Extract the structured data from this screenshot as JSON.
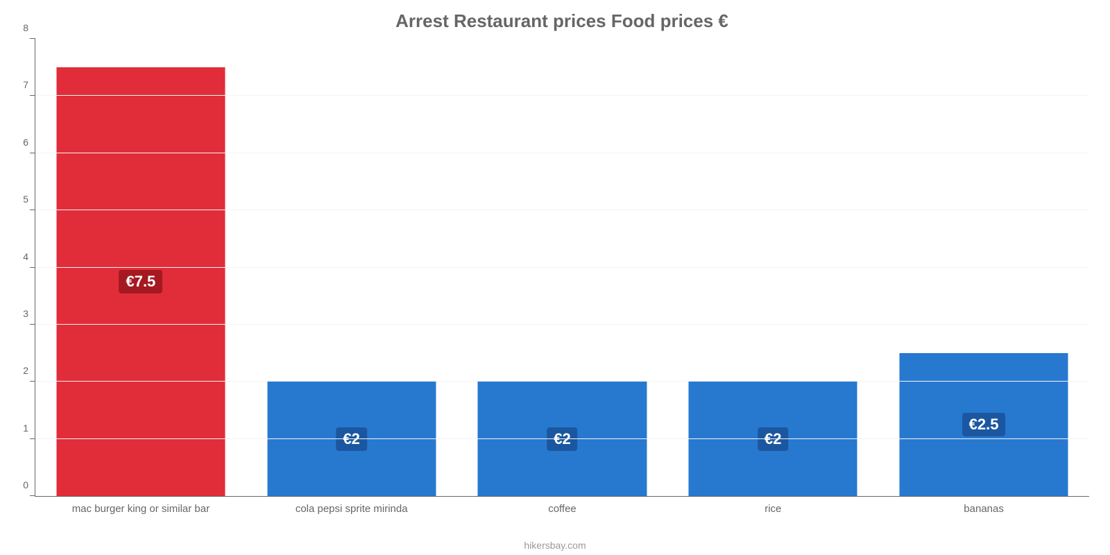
{
  "chart": {
    "type": "bar",
    "title": "Arrest Restaurant prices Food prices €",
    "title_fontsize": 26,
    "title_color": "#666666",
    "background_color": "#ffffff",
    "axis_color": "#666666",
    "grid_color": "#f5f5f5",
    "ylim": [
      0,
      8
    ],
    "ytick_step": 1,
    "yticks": [
      0,
      1,
      2,
      3,
      4,
      5,
      6,
      7,
      8
    ],
    "bar_width_pct": 80,
    "label_fontsize": 22,
    "xlabel_fontsize": 15,
    "ylabel_fontsize": 14,
    "categories": [
      "mac burger king or similar bar",
      "cola pepsi sprite mirinda",
      "coffee",
      "rice",
      "bananas"
    ],
    "values": [
      7.5,
      2,
      2,
      2,
      2.5
    ],
    "value_labels": [
      "€7.5",
      "€2",
      "€2",
      "€2",
      "€2.5"
    ],
    "bar_colors": [
      "#e12d39",
      "#2779d0",
      "#2779d0",
      "#2779d0",
      "#2779d0"
    ],
    "label_bg_colors": [
      "#a51920",
      "#1b57a0",
      "#1b57a0",
      "#1b57a0",
      "#1b57a0"
    ],
    "credit": "hikersbay.com",
    "credit_color": "#999999"
  }
}
